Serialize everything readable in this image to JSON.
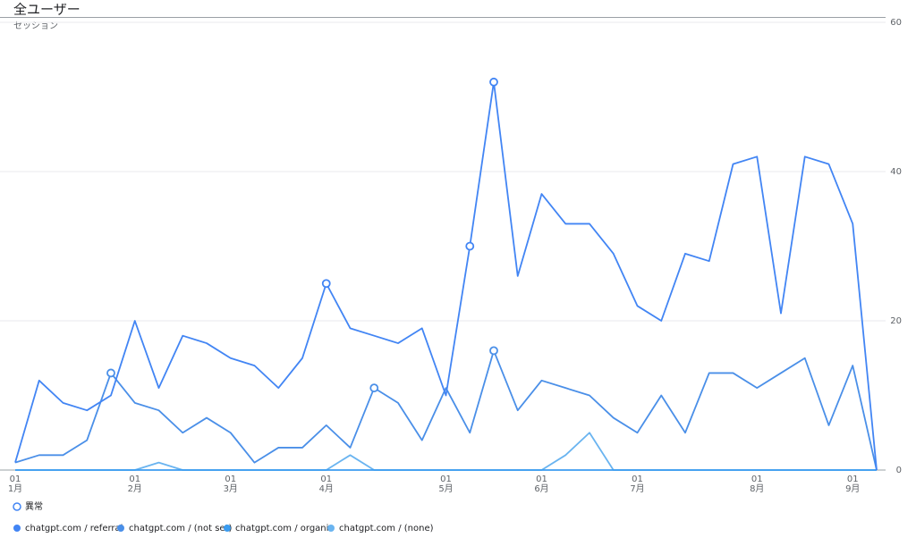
{
  "chart_data": {
    "type": "line",
    "title": "全ユーザー",
    "y_label": "セッション",
    "categories": [
      [
        "01",
        "1月"
      ],
      null,
      null,
      null,
      null,
      [
        "01",
        "2月"
      ],
      null,
      null,
      null,
      [
        "01",
        "3月"
      ],
      null,
      null,
      null,
      [
        "01",
        "4月"
      ],
      null,
      null,
      null,
      null,
      [
        "01",
        "5月"
      ],
      null,
      null,
      null,
      [
        "01",
        "6月"
      ],
      null,
      null,
      null,
      [
        "01",
        "7月"
      ],
      null,
      null,
      null,
      null,
      [
        "01",
        "8月"
      ],
      null,
      null,
      null,
      [
        "01",
        "9月"
      ],
      null
    ],
    "series": [
      {
        "name": "chatgpt.com / referral",
        "color": "#4285f4",
        "values": [
          1,
          12,
          9,
          8,
          10,
          20,
          11,
          18,
          17,
          15,
          14,
          11,
          15,
          25,
          19,
          18,
          17,
          19,
          10,
          30,
          52,
          26,
          37,
          33,
          33,
          29,
          22,
          20,
          29,
          28,
          41,
          42,
          21,
          42,
          41,
          33,
          0
        ],
        "anomalies": [
          13,
          19,
          20
        ]
      },
      {
        "name": "chatgpt.com / (not set)",
        "color": "#4a8fe8",
        "values": [
          1,
          2,
          2,
          4,
          13,
          9,
          8,
          5,
          7,
          5,
          1,
          3,
          3,
          6,
          3,
          11,
          9,
          4,
          11,
          5,
          16,
          8,
          12,
          11,
          10,
          7,
          5,
          10,
          5,
          13,
          13,
          11,
          13,
          15,
          6,
          14,
          0
        ],
        "anomalies": [
          4,
          15,
          20
        ]
      },
      {
        "name": "chatgpt.com / organic",
        "color": "#3b9cf0",
        "values": [
          0,
          0,
          0,
          0,
          0,
          0,
          0,
          0,
          0,
          0,
          0,
          0,
          0,
          0,
          0,
          0,
          0,
          0,
          0,
          0,
          0,
          0,
          0,
          0,
          0,
          0,
          0,
          0,
          0,
          0,
          0,
          0,
          0,
          0,
          0,
          0,
          0
        ],
        "anomalies": []
      },
      {
        "name": "chatgpt.com / (none)",
        "color": "#6ab4f0",
        "values": [
          0,
          0,
          0,
          0,
          0,
          0,
          1,
          0,
          0,
          0,
          0,
          0,
          0,
          0,
          2,
          0,
          0,
          0,
          0,
          0,
          0,
          0,
          0,
          2,
          5,
          0,
          0,
          0,
          0,
          0,
          0,
          0,
          0,
          0,
          0,
          0,
          0
        ],
        "anomalies": []
      }
    ],
    "anomaly_label": "異常",
    "ylim": [
      0,
      60
    ],
    "yticks": [
      0,
      20,
      40,
      60
    ],
    "grid": true
  }
}
